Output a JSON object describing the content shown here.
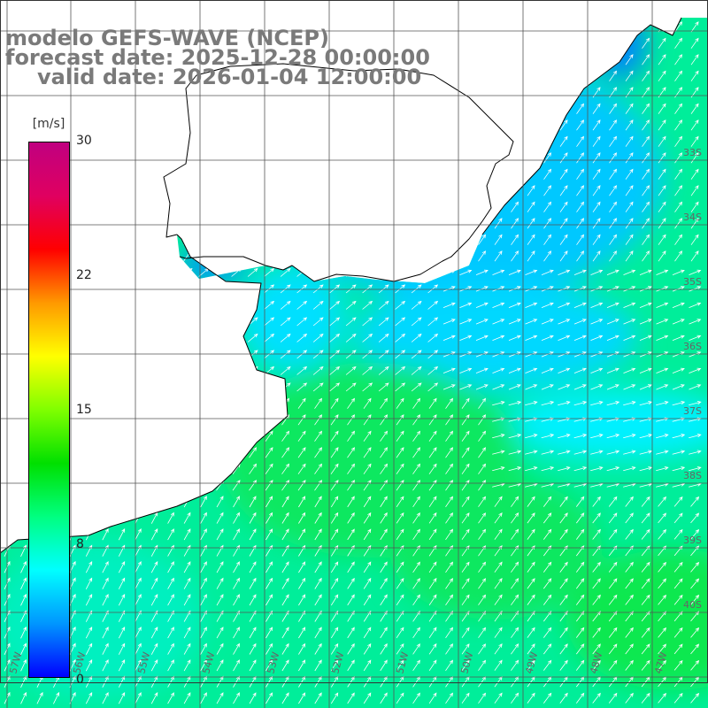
{
  "header": {
    "line1": "modelo GEFS-WAVE (NCEP)",
    "line2": "forecast date: 2025-12-28 00:00:00",
    "line3": "valid date: 2026-01-04 12:00:00"
  },
  "colorbar": {
    "unit": "[m/s]",
    "ticks": [
      "30",
      "22",
      "15",
      "8",
      "0"
    ],
    "min": 0,
    "max": 30,
    "colors": [
      "#0000ff",
      "#0096ff",
      "#00ffff",
      "#00ff80",
      "#00e000",
      "#80ff00",
      "#ffff00",
      "#ff9900",
      "#ff0000",
      "#e00060",
      "#c00080"
    ]
  },
  "map": {
    "lat_labels": [
      "33S",
      "34S",
      "35S",
      "36S",
      "37S",
      "38S",
      "39S",
      "40S"
    ],
    "lon_labels": [
      "57W",
      "56W",
      "55W",
      "54W",
      "53W",
      "52W",
      "51W",
      "50W",
      "49W",
      "48W",
      "47W"
    ],
    "land_color": "#ffffff",
    "coast_color": "#000000",
    "grid_color": "#555555",
    "arrow_color": "#ffffff"
  }
}
